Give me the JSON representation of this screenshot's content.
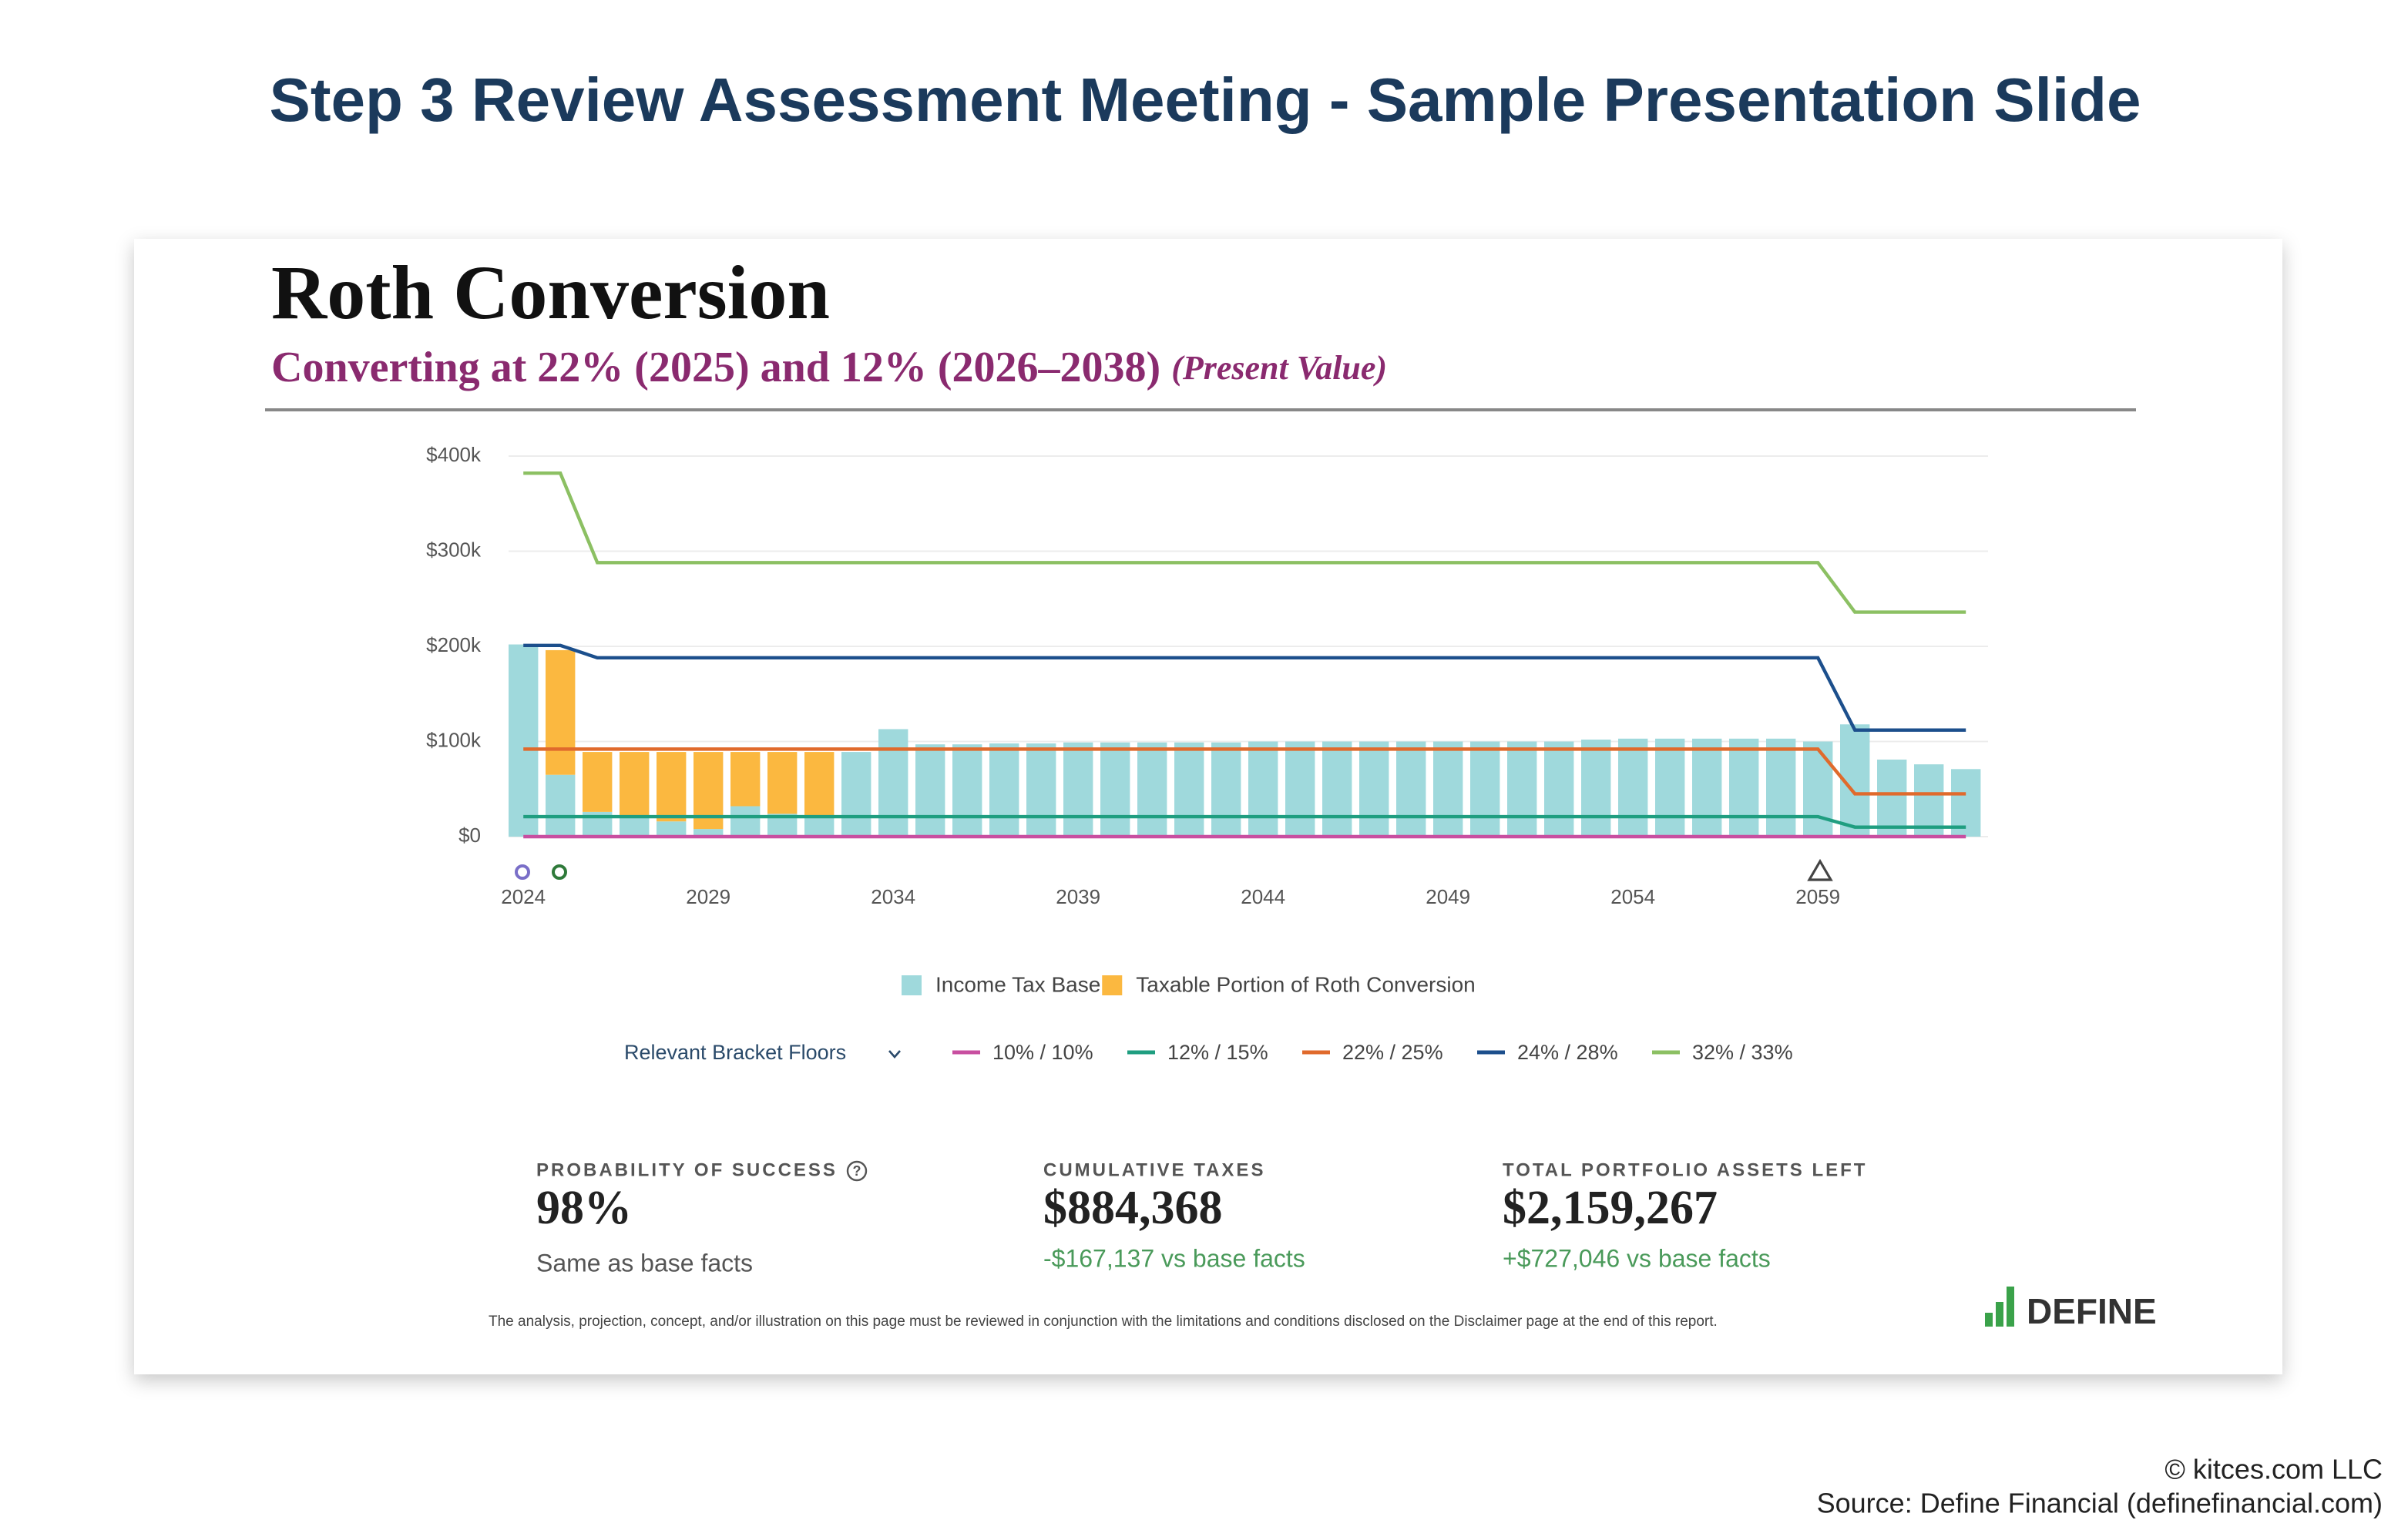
{
  "page_title": "Step 3 Review Assessment Meeting - Sample Presentation Slide",
  "chart_data": {
    "type": "bar",
    "title": "Roth Conversion",
    "subtitle": "Converting at 22% (2025) and 12% (2026–2038)",
    "subtitle_note": "(Present Value)",
    "x": [
      2024,
      2025,
      2026,
      2027,
      2028,
      2029,
      2030,
      2031,
      2032,
      2033,
      2034,
      2035,
      2036,
      2037,
      2038,
      2039,
      2040,
      2041,
      2042,
      2043,
      2044,
      2045,
      2046,
      2047,
      2048,
      2049,
      2050,
      2051,
      2052,
      2053,
      2054,
      2055,
      2056,
      2057,
      2058,
      2059,
      2060,
      2061,
      2062,
      2063
    ],
    "xlim": [
      2023.6,
      2063.6
    ],
    "xticks": [
      2024,
      2029,
      2034,
      2039,
      2044,
      2049,
      2054,
      2059
    ],
    "ylim": [
      0,
      400000
    ],
    "yticks": [
      {
        "value": 0,
        "label": "$0"
      },
      {
        "value": 100000,
        "label": "$100k"
      },
      {
        "value": 200000,
        "label": "$200k"
      },
      {
        "value": 300000,
        "label": "$300k"
      },
      {
        "value": 400000,
        "label": "$400k"
      }
    ],
    "grid": true,
    "series": [
      {
        "name": "Income Tax Base",
        "type": "bar",
        "color": "#9fd9dc",
        "values": [
          202000,
          65000,
          26000,
          21000,
          16000,
          8000,
          32000,
          24000,
          21000,
          89000,
          113000,
          97000,
          97000,
          98000,
          98000,
          99000,
          99000,
          99000,
          99000,
          99000,
          100000,
          100000,
          100000,
          100000,
          100000,
          100000,
          100000,
          100000,
          100000,
          102000,
          103000,
          103000,
          103000,
          103000,
          103000,
          100000,
          118000,
          81000,
          76000,
          71000
        ]
      },
      {
        "name": "Taxable Portion of Roth Conversion",
        "type": "bar",
        "color": "#fbb840",
        "values": [
          null,
          131000,
          63000,
          68000,
          73000,
          81000,
          57000,
          65000,
          68000,
          null,
          null,
          null,
          null,
          null,
          null,
          null,
          null,
          null,
          null,
          null,
          null,
          null,
          null,
          null,
          null,
          null,
          null,
          null,
          null,
          null,
          null,
          null,
          null,
          null,
          null,
          null,
          null,
          null,
          null,
          null
        ]
      },
      {
        "name": "10% / 10%",
        "type": "line",
        "color": "#c84fa0",
        "values": [
          0,
          0,
          0,
          0,
          0,
          0,
          0,
          0,
          0,
          0,
          0,
          0,
          0,
          0,
          0,
          0,
          0,
          0,
          0,
          0,
          0,
          0,
          0,
          0,
          0,
          0,
          0,
          0,
          0,
          0,
          0,
          0,
          0,
          0,
          0,
          0,
          0,
          0,
          0,
          0
        ]
      },
      {
        "name": "12% / 15%",
        "type": "line",
        "color": "#1f9e80",
        "values": [
          21000,
          21000,
          21000,
          21000,
          21000,
          21000,
          21000,
          21000,
          21000,
          21000,
          21000,
          21000,
          21000,
          21000,
          21000,
          21000,
          21000,
          21000,
          21000,
          21000,
          21000,
          21000,
          21000,
          21000,
          21000,
          21000,
          21000,
          21000,
          21000,
          21000,
          21000,
          21000,
          21000,
          21000,
          21000,
          21000,
          10000,
          10000,
          10000,
          10000
        ]
      },
      {
        "name": "22% / 25%",
        "type": "line",
        "color": "#e06a2c",
        "values": [
          92000,
          92000,
          92000,
          92000,
          92000,
          92000,
          92000,
          92000,
          92000,
          92000,
          92000,
          92000,
          92000,
          92000,
          92000,
          92000,
          92000,
          92000,
          92000,
          92000,
          92000,
          92000,
          92000,
          92000,
          92000,
          92000,
          92000,
          92000,
          92000,
          92000,
          92000,
          92000,
          92000,
          92000,
          92000,
          92000,
          45000,
          45000,
          45000,
          45000
        ]
      },
      {
        "name": "24% / 28%",
        "type": "line",
        "color": "#1c4f8c",
        "values": [
          201000,
          201000,
          188000,
          188000,
          188000,
          188000,
          188000,
          188000,
          188000,
          188000,
          188000,
          188000,
          188000,
          188000,
          188000,
          188000,
          188000,
          188000,
          188000,
          188000,
          188000,
          188000,
          188000,
          188000,
          188000,
          188000,
          188000,
          188000,
          188000,
          188000,
          188000,
          188000,
          188000,
          188000,
          188000,
          188000,
          112000,
          112000,
          112000,
          112000
        ]
      },
      {
        "name": "32% / 33%",
        "type": "line",
        "color": "#8cc063",
        "values": [
          382000,
          382000,
          288000,
          288000,
          288000,
          288000,
          288000,
          288000,
          288000,
          288000,
          288000,
          288000,
          288000,
          288000,
          288000,
          288000,
          288000,
          288000,
          288000,
          288000,
          288000,
          288000,
          288000,
          288000,
          288000,
          288000,
          288000,
          288000,
          288000,
          288000,
          288000,
          288000,
          288000,
          288000,
          288000,
          288000,
          236000,
          236000,
          236000,
          236000
        ]
      }
    ],
    "line_legend_title": "Relevant Bracket Floors"
  },
  "metrics": [
    {
      "label": "PROBABILITY OF SUCCESS",
      "value": "98%",
      "note": "Same as base facts"
    },
    {
      "label": "CUMULATIVE TAXES",
      "value": "$884,368",
      "note": "-$167,137 vs base facts"
    },
    {
      "label": "TOTAL PORTFOLIO ASSETS LEFT",
      "value": "$2,159,267",
      "note": "+$727,046 vs base facts"
    }
  ],
  "disclaimer": "The analysis, projection, concept, and/or illustration on this page must be reviewed in conjunction with the limitations and conditions disclosed on the Disclaimer page at the end of this report.",
  "logo": "DEFINE",
  "footer": [
    "© kitces.com LLC",
    "Source: Define Financial (definefinancial.com)"
  ]
}
